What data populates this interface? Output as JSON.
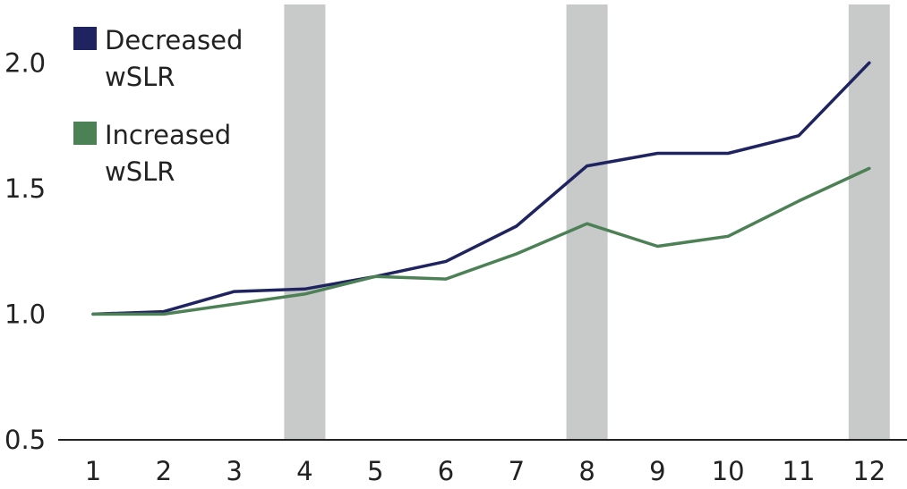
{
  "chart_data": {
    "type": "line",
    "title": "",
    "xlabel": "",
    "ylabel": "",
    "x": [
      1,
      2,
      3,
      4,
      5,
      6,
      7,
      8,
      9,
      10,
      11,
      12
    ],
    "x_tick_labels": [
      "1",
      "2",
      "3",
      "4",
      "5",
      "6",
      "7",
      "8",
      "9",
      "10",
      "11",
      "12"
    ],
    "y_ticks": [
      0.5,
      1.0,
      1.5,
      2.0
    ],
    "y_tick_labels": [
      "0.5",
      "1.0",
      "1.5",
      "2.0"
    ],
    "ylim": [
      0.5,
      2.25
    ],
    "grid": false,
    "legend_position": "top-left",
    "shaded_x": [
      4,
      8,
      12
    ],
    "shade_color": "#c8c9c9",
    "series": [
      {
        "name": "Decreased wSLR",
        "legend_lines": [
          "Decreased",
          "wSLR"
        ],
        "color": "#1f2461",
        "values": [
          1.0,
          1.01,
          1.09,
          1.1,
          1.15,
          1.21,
          1.35,
          1.59,
          1.64,
          1.64,
          1.71,
          2.0
        ]
      },
      {
        "name": "Increased wSLR",
        "legend_lines": [
          "Increased",
          "wSLR"
        ],
        "color": "#4c8055",
        "values": [
          1.0,
          1.0,
          1.04,
          1.08,
          1.15,
          1.14,
          1.24,
          1.36,
          1.27,
          1.31,
          1.45,
          1.58
        ]
      }
    ]
  }
}
